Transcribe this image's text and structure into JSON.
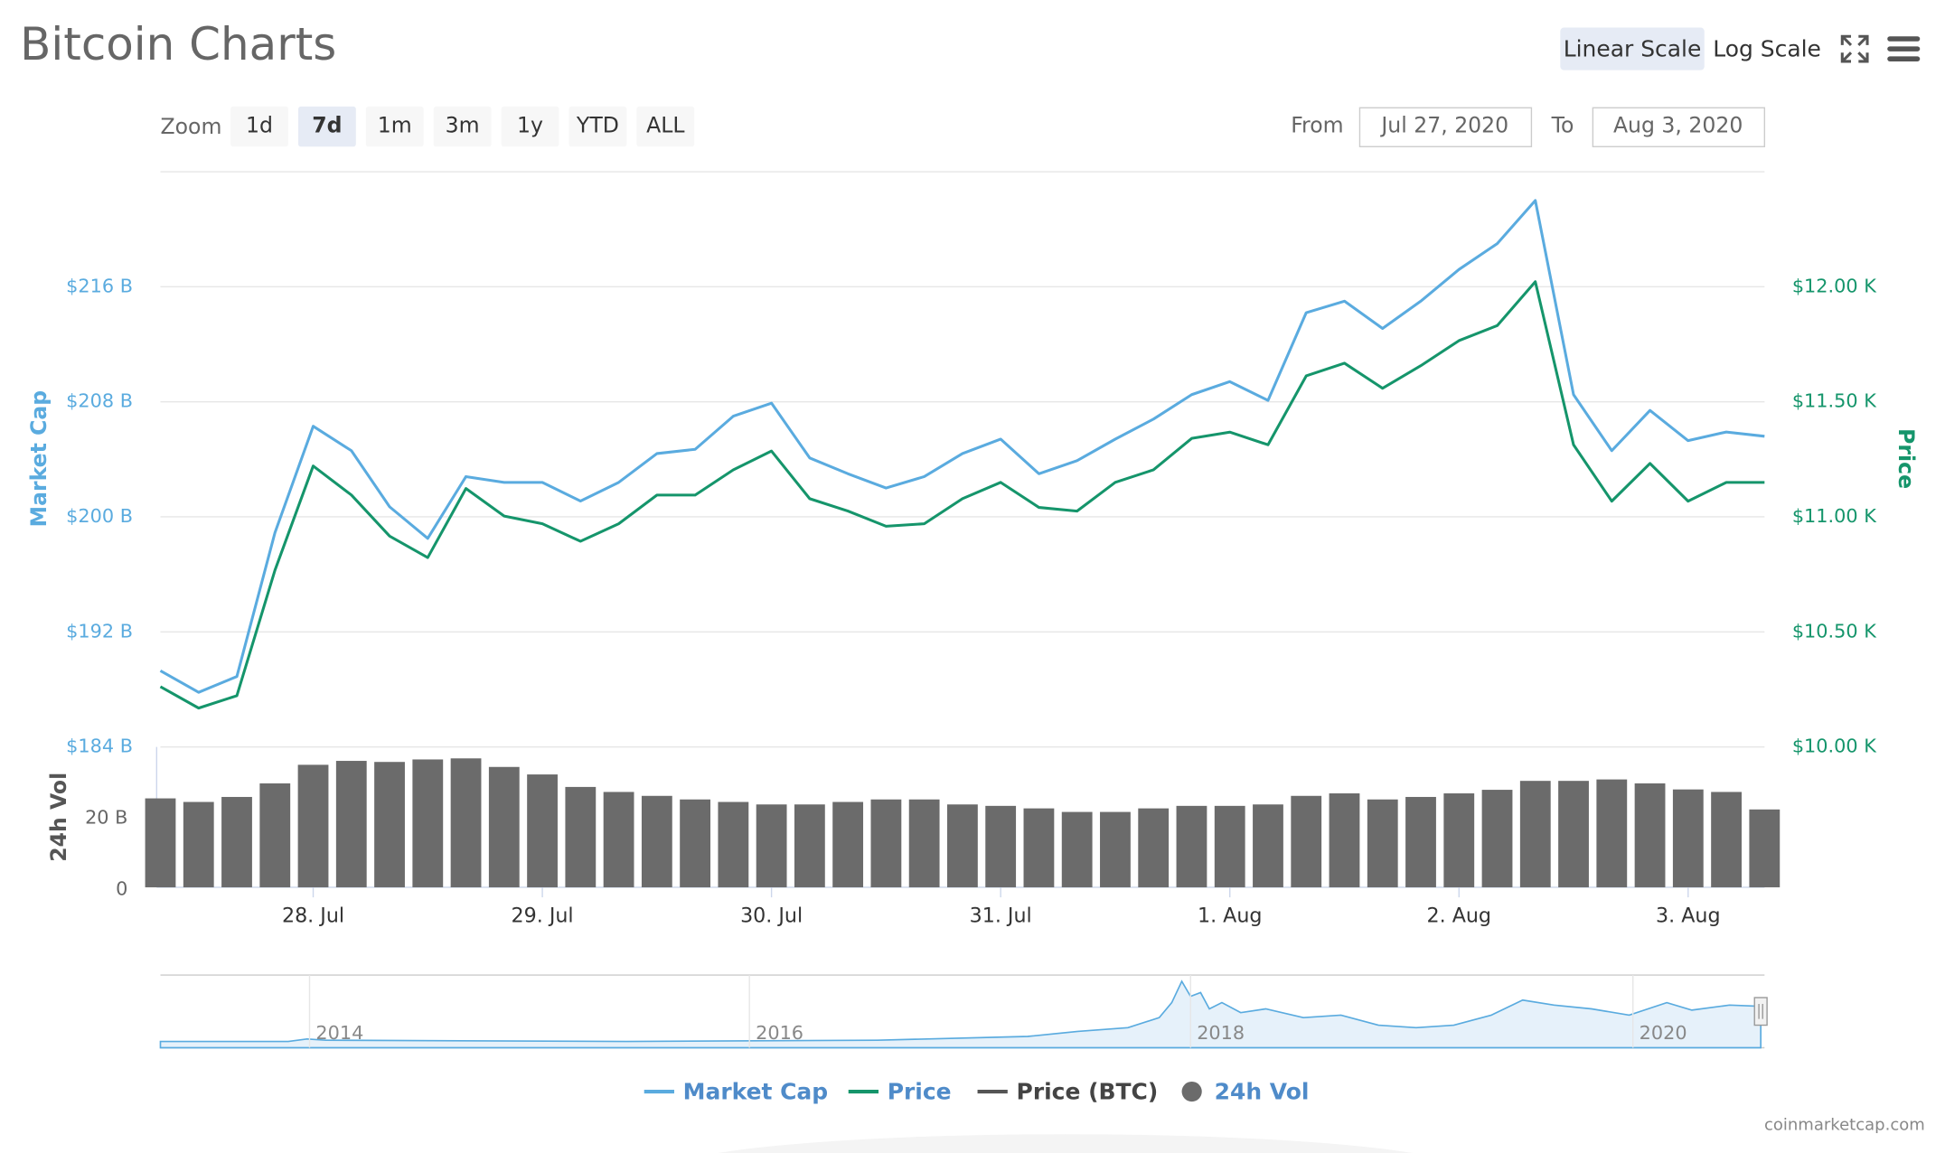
{
  "page_title": "Bitcoin Charts",
  "toolbar": {
    "scales": [
      "Linear Scale",
      "Log Scale"
    ],
    "selected": 0
  },
  "range_selector": {
    "label": "Zoom",
    "buttons": [
      "1d",
      "7d",
      "1m",
      "3m",
      "1y",
      "YTD",
      "ALL"
    ],
    "selected": 1,
    "from_label": "From",
    "from": "Jul 27, 2020",
    "to_label": "To",
    "to": "Aug 3, 2020"
  },
  "chart_data": {
    "type": "line",
    "y_label": "Market Cap",
    "y2_label": "Price",
    "vol_label": "24h Vol",
    "categories": [
      null,
      null,
      null,
      null,
      "28. Jul",
      null,
      null,
      null,
      null,
      null,
      "29. Jul",
      null,
      null,
      null,
      null,
      null,
      "30. Jul",
      null,
      null,
      null,
      null,
      null,
      "31. Jul",
      null,
      null,
      null,
      null,
      null,
      "1. Aug",
      null,
      null,
      null,
      null,
      null,
      "2. Aug",
      null,
      null,
      null,
      null,
      null,
      "3. Aug",
      null,
      null
    ],
    "ylim": [
      184,
      224
    ],
    "yticks": [
      {
        "value": 184,
        "label": "$184 B"
      },
      {
        "value": 192,
        "label": "$192 B"
      },
      {
        "value": 200,
        "label": "$200 B"
      },
      {
        "value": 208,
        "label": "$208 B"
      },
      {
        "value": 216,
        "label": "$216 B"
      }
    ],
    "y2lim": [
      10000,
      12500
    ],
    "y2ticks": [
      {
        "value": 10000,
        "label": "$10.00 K"
      },
      {
        "value": 10500,
        "label": "$10.50 K"
      },
      {
        "value": 11000,
        "label": "$11.00 K"
      },
      {
        "value": 11500,
        "label": "$11.50 K"
      },
      {
        "value": 12000,
        "label": "$12.00 K"
      }
    ],
    "vol_ylim": [
      0,
      40
    ],
    "vol_yticks": [
      0,
      {
        "value": 20,
        "label": "20 B"
      }
    ],
    "grid": true,
    "series": [
      {
        "name": "Market Cap",
        "color": "#5aabdf",
        "axis": "y",
        "values": [
          189.3,
          187.8,
          188.9,
          198.9,
          206.3,
          204.6,
          200.7,
          198.5,
          202.8,
          202.4,
          202.4,
          201.1,
          202.4,
          204.4,
          204.7,
          207.0,
          207.9,
          204.1,
          203.0,
          202.0,
          202.8,
          204.4,
          205.4,
          203.0,
          203.9,
          205.4,
          206.8,
          208.5,
          209.4,
          208.1,
          214.2,
          215.0,
          213.1,
          215.0,
          217.2,
          219.0,
          222.0,
          208.5,
          204.6,
          207.4,
          205.3,
          205.9,
          205.6
        ]
      },
      {
        "name": "Price",
        "color": "#15956b",
        "axis": "y2",
        "values": [
          10262,
          10169,
          10223,
          10768,
          11221,
          11095,
          10916,
          10823,
          11123,
          11003,
          10970,
          10894,
          10970,
          11095,
          11095,
          11204,
          11286,
          11079,
          11025,
          10959,
          10970,
          11079,
          11150,
          11041,
          11025,
          11150,
          11204,
          11341,
          11368,
          11313,
          11613,
          11668,
          11559,
          11657,
          11766,
          11831,
          12022,
          11313,
          11068,
          11232,
          11068,
          11150,
          11150
        ]
      },
      {
        "name": "Price (BTC)",
        "color": "#555555",
        "hidden": true
      },
      {
        "name": "24h Vol",
        "color": "#6b6b6b",
        "axis": "vol",
        "marker": "circle",
        "values": [
          25.6,
          24.6,
          26.0,
          29.8,
          35.0,
          36.1,
          35.8,
          36.5,
          36.8,
          34.4,
          32.3,
          28.8,
          27.4,
          26.3,
          25.3,
          24.6,
          23.9,
          23.9,
          24.6,
          25.3,
          25.3,
          23.9,
          23.5,
          22.8,
          21.8,
          21.8,
          22.8,
          23.5,
          23.5,
          23.9,
          26.3,
          27.0,
          25.3,
          26.0,
          27.0,
          28.0,
          30.5,
          30.5,
          30.9,
          29.8,
          28.1,
          27.4,
          22.5
        ]
      }
    ]
  },
  "navigator": {
    "labels": [
      "2014",
      "2016",
      "2018",
      "2020"
    ]
  },
  "credit": "coinmarketcap.com"
}
